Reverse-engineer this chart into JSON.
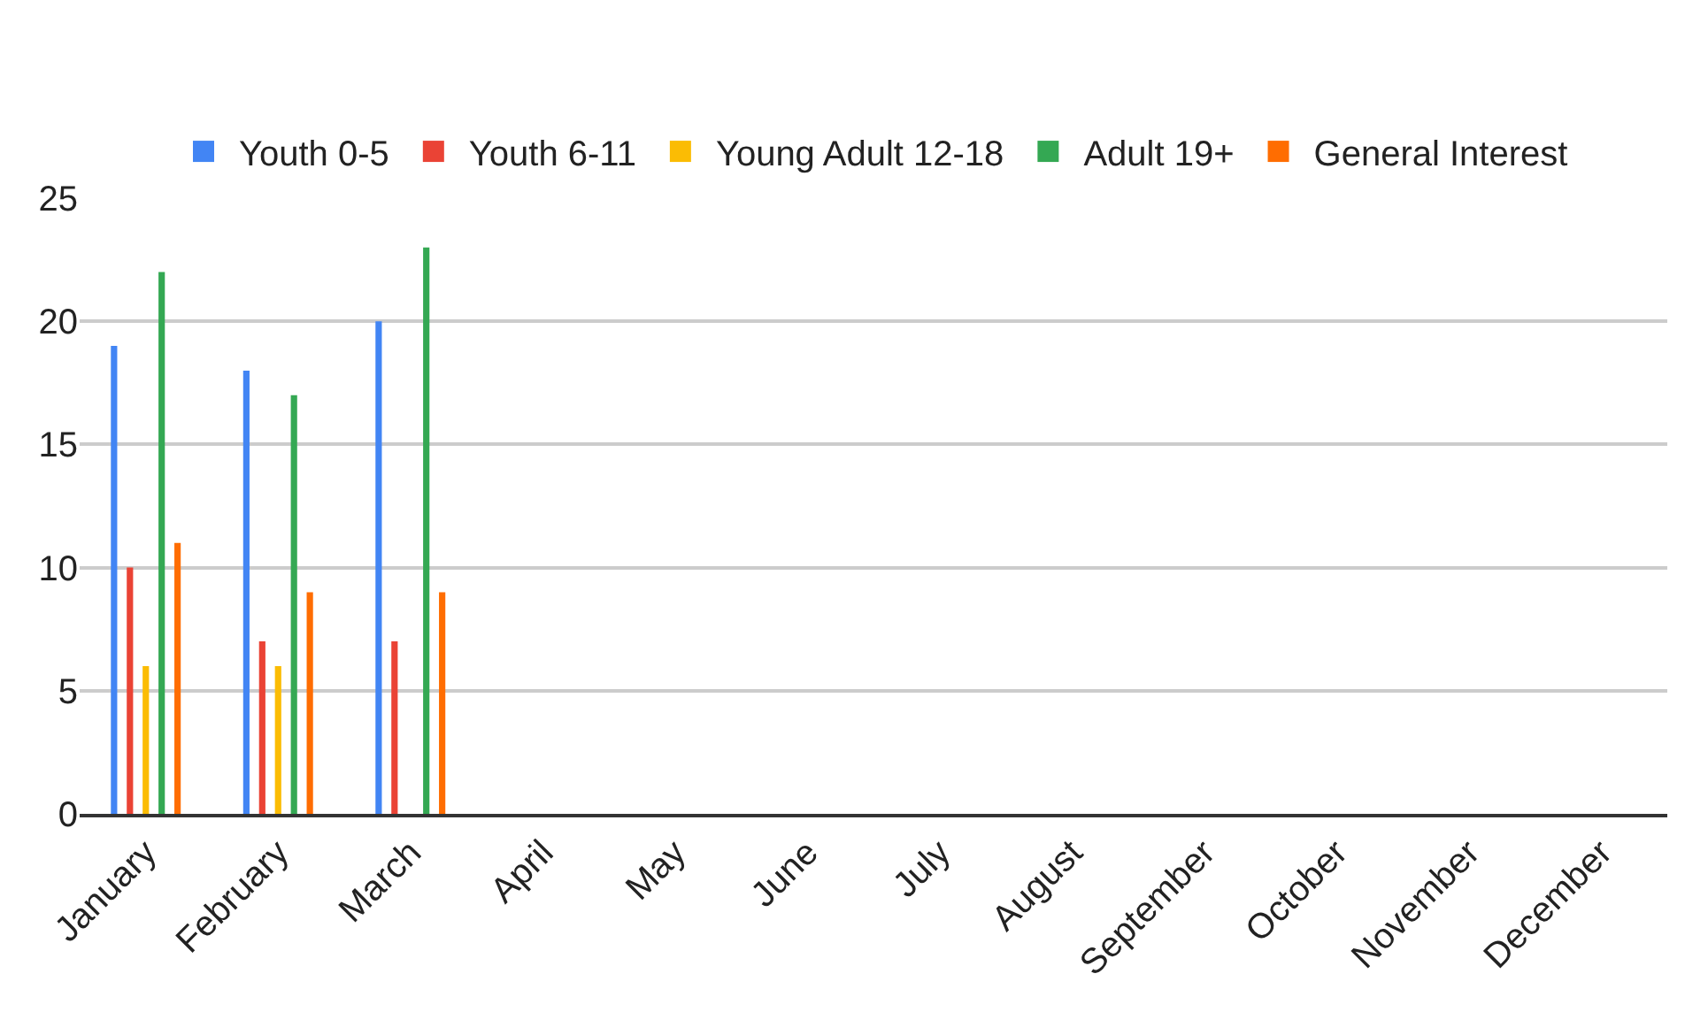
{
  "chart_data": {
    "type": "bar",
    "categories": [
      "January",
      "February",
      "March",
      "April",
      "May",
      "June",
      "July",
      "August",
      "September",
      "October",
      "November",
      "December"
    ],
    "series": [
      {
        "name": "Youth 0-5",
        "color": "#4285f4",
        "values": [
          19,
          18,
          20,
          null,
          null,
          null,
          null,
          null,
          null,
          null,
          null,
          null
        ]
      },
      {
        "name": "Youth 6-11",
        "color": "#ea4335",
        "values": [
          10,
          7,
          7,
          null,
          null,
          null,
          null,
          null,
          null,
          null,
          null,
          null
        ]
      },
      {
        "name": "Young Adult 12-18",
        "color": "#fbbc04",
        "values": [
          6,
          6,
          null,
          null,
          null,
          null,
          null,
          null,
          null,
          null,
          null,
          null
        ]
      },
      {
        "name": "Adult 19+",
        "color": "#34a853",
        "values": [
          22,
          17,
          23,
          null,
          null,
          null,
          null,
          null,
          null,
          null,
          null,
          null
        ]
      },
      {
        "name": "General Interest",
        "color": "#ff6d01",
        "values": [
          11,
          9,
          9,
          null,
          null,
          null,
          null,
          null,
          null,
          null,
          null,
          null
        ]
      }
    ],
    "ylim": [
      0,
      25
    ],
    "yticks": [
      0,
      5,
      10,
      15,
      20,
      25
    ],
    "grid": "y",
    "legend": "top"
  }
}
